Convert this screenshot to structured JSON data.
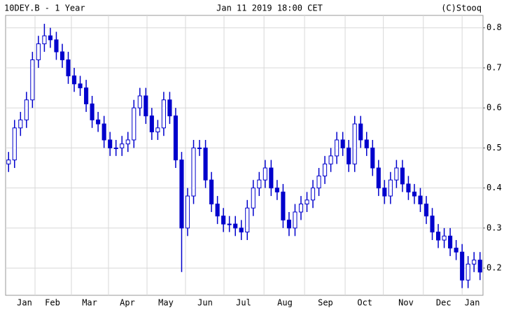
{
  "chart_data": {
    "type": "candlestick",
    "title": "10DEY.B - 1 Year",
    "subtitle": "Jan 11 2019 18:00 CET",
    "source": "(C)Stooq",
    "color": "#0000cc",
    "open": [
      0.46,
      0.47,
      0.55,
      0.57,
      0.62,
      0.72,
      0.76,
      0.78,
      0.77,
      0.74,
      0.72,
      0.68,
      0.66,
      0.65,
      0.61,
      0.57,
      0.56,
      0.52,
      0.5,
      0.5,
      0.51,
      0.52,
      0.6,
      0.63,
      0.58,
      0.54,
      0.55,
      0.62,
      0.58,
      0.47,
      0.3,
      0.38,
      0.5,
      0.5,
      0.42,
      0.36,
      0.33,
      0.31,
      0.31,
      0.3,
      0.29,
      0.35,
      0.4,
      0.42,
      0.45,
      0.4,
      0.39,
      0.32,
      0.3,
      0.34,
      0.36,
      0.37,
      0.4,
      0.43,
      0.46,
      0.48,
      0.52,
      0.5,
      0.46,
      0.56,
      0.52,
      0.5,
      0.45,
      0.4,
      0.38,
      0.42,
      0.45,
      0.41,
      0.39,
      0.38,
      0.36,
      0.33,
      0.29,
      0.27,
      0.28,
      0.25,
      0.24,
      0.17,
      0.21,
      0.22
    ],
    "high": [
      0.49,
      0.57,
      0.59,
      0.64,
      0.74,
      0.78,
      0.81,
      0.8,
      0.79,
      0.76,
      0.74,
      0.7,
      0.68,
      0.67,
      0.63,
      0.59,
      0.58,
      0.54,
      0.52,
      0.53,
      0.54,
      0.62,
      0.65,
      0.65,
      0.6,
      0.57,
      0.64,
      0.64,
      0.6,
      0.49,
      0.4,
      0.52,
      0.52,
      0.52,
      0.44,
      0.38,
      0.35,
      0.33,
      0.33,
      0.32,
      0.37,
      0.42,
      0.44,
      0.47,
      0.47,
      0.42,
      0.41,
      0.34,
      0.36,
      0.38,
      0.39,
      0.42,
      0.45,
      0.48,
      0.5,
      0.54,
      0.54,
      0.52,
      0.58,
      0.58,
      0.54,
      0.52,
      0.47,
      0.42,
      0.44,
      0.47,
      0.47,
      0.43,
      0.41,
      0.4,
      0.38,
      0.35,
      0.31,
      0.3,
      0.3,
      0.27,
      0.26,
      0.23,
      0.24,
      0.24
    ],
    "low": [
      0.44,
      0.45,
      0.53,
      0.55,
      0.6,
      0.7,
      0.74,
      0.75,
      0.72,
      0.7,
      0.66,
      0.64,
      0.63,
      0.59,
      0.55,
      0.54,
      0.5,
      0.48,
      0.48,
      0.48,
      0.49,
      0.5,
      0.58,
      0.56,
      0.52,
      0.52,
      0.53,
      0.56,
      0.45,
      0.19,
      0.28,
      0.36,
      0.48,
      0.4,
      0.34,
      0.31,
      0.29,
      0.29,
      0.28,
      0.27,
      0.27,
      0.33,
      0.38,
      0.4,
      0.38,
      0.37,
      0.3,
      0.28,
      0.28,
      0.32,
      0.34,
      0.35,
      0.38,
      0.41,
      0.44,
      0.46,
      0.48,
      0.44,
      0.44,
      0.5,
      0.48,
      0.43,
      0.38,
      0.36,
      0.36,
      0.4,
      0.39,
      0.37,
      0.36,
      0.34,
      0.31,
      0.27,
      0.25,
      0.25,
      0.23,
      0.22,
      0.15,
      0.15,
      0.19,
      0.17
    ],
    "close": [
      0.47,
      0.55,
      0.57,
      0.62,
      0.72,
      0.76,
      0.78,
      0.77,
      0.74,
      0.72,
      0.68,
      0.66,
      0.65,
      0.61,
      0.57,
      0.56,
      0.52,
      0.5,
      0.5,
      0.51,
      0.52,
      0.6,
      0.63,
      0.58,
      0.54,
      0.55,
      0.62,
      0.58,
      0.47,
      0.3,
      0.38,
      0.5,
      0.5,
      0.42,
      0.36,
      0.33,
      0.31,
      0.31,
      0.3,
      0.29,
      0.35,
      0.4,
      0.42,
      0.45,
      0.4,
      0.39,
      0.32,
      0.3,
      0.34,
      0.36,
      0.37,
      0.4,
      0.43,
      0.46,
      0.48,
      0.52,
      0.5,
      0.46,
      0.56,
      0.52,
      0.5,
      0.45,
      0.4,
      0.38,
      0.42,
      0.45,
      0.41,
      0.39,
      0.38,
      0.36,
      0.33,
      0.29,
      0.27,
      0.28,
      0.25,
      0.24,
      0.17,
      0.21,
      0.22,
      0.19
    ],
    "xlim": [
      -0.5,
      79.5
    ],
    "xticks": [
      {
        "value": 2.67,
        "label": "Jan"
      },
      {
        "value": 7.36,
        "label": "Feb"
      },
      {
        "value": 13.58,
        "label": "Mar"
      },
      {
        "value": 19.91,
        "label": "Apr"
      },
      {
        "value": 26.36,
        "label": "May"
      },
      {
        "value": 32.93,
        "label": "Jun"
      },
      {
        "value": 39.38,
        "label": "Jul"
      },
      {
        "value": 46.3,
        "label": "Aug"
      },
      {
        "value": 53.1,
        "label": "Sep"
      },
      {
        "value": 59.7,
        "label": "Oct"
      },
      {
        "value": 66.6,
        "label": "Nov"
      },
      {
        "value": 72.9,
        "label": "Dec"
      },
      {
        "value": 77.7,
        "label": "Jan"
      }
    ],
    "xgrid": [
      4.43,
      10.53,
      16.74,
      23.2,
      29.65,
      36.1,
      42.8,
      49.6,
      56.4,
      62.8,
      69.5,
      76.0
    ],
    "ylim": [
      0.132,
      0.831
    ],
    "yticks": [
      0.2,
      0.3,
      0.4,
      0.5,
      0.6,
      0.7,
      0.8
    ],
    "grid": true
  }
}
